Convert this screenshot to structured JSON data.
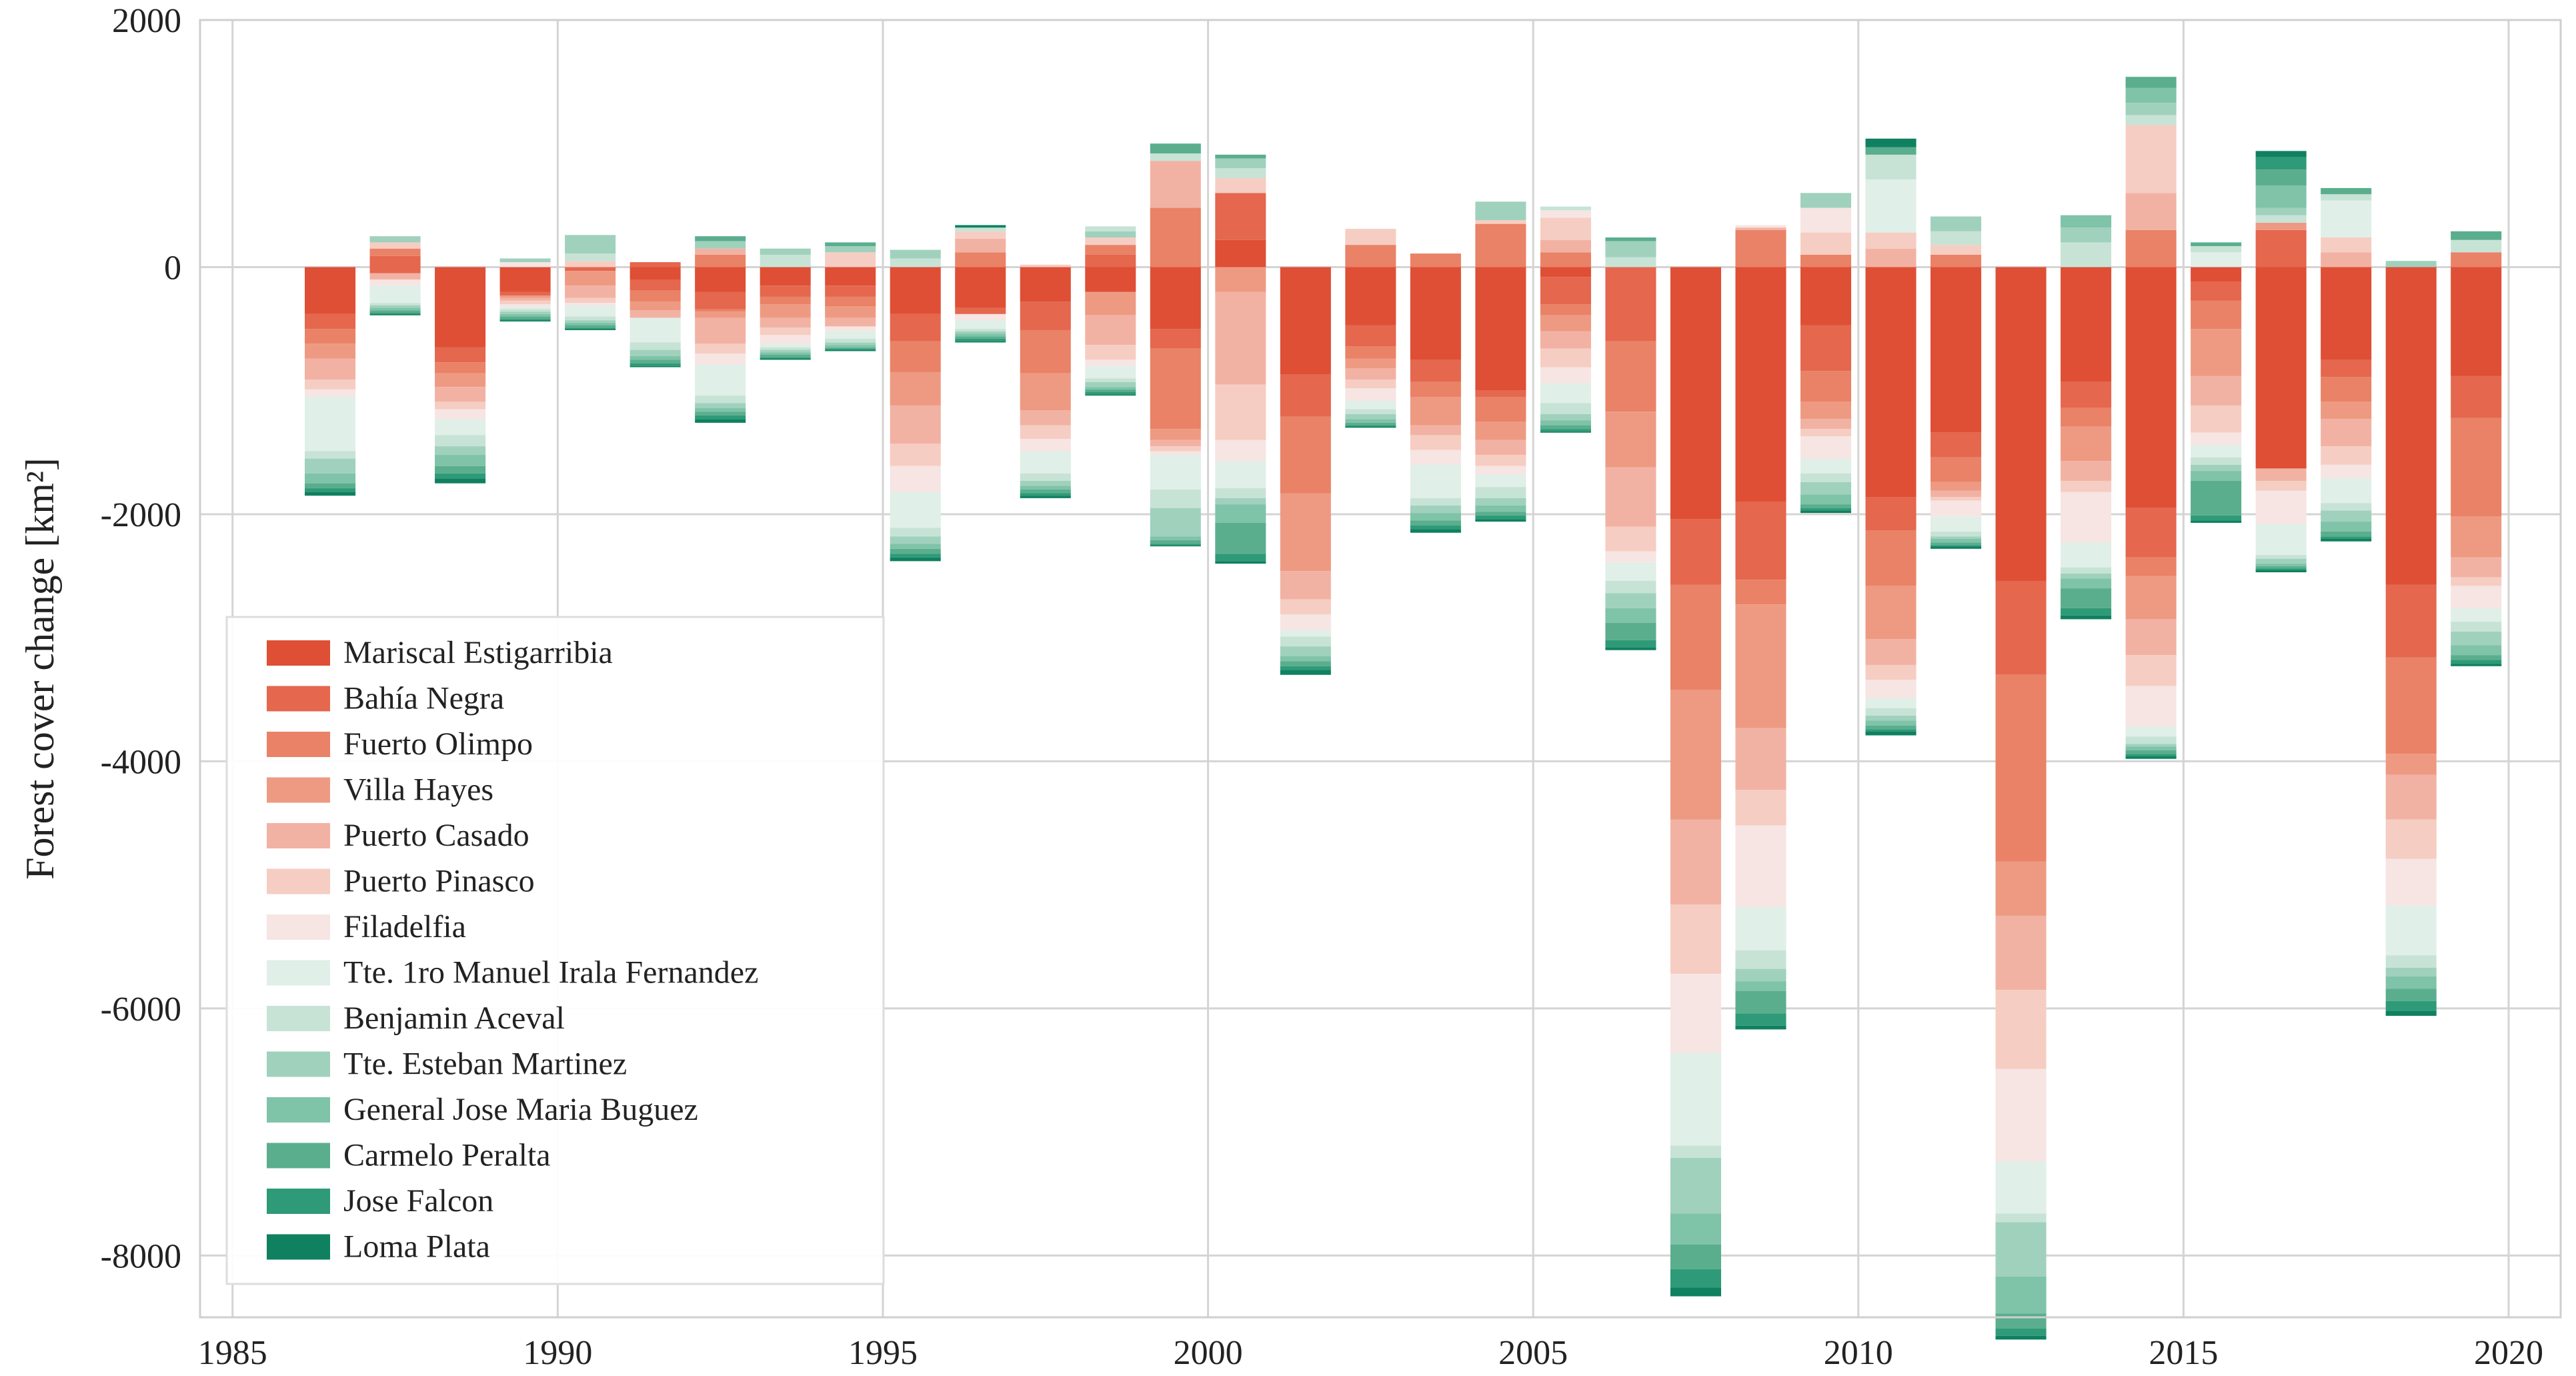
{
  "chart_data": {
    "type": "bar",
    "stacked": true,
    "title": "",
    "xlabel": "",
    "ylabel": "Forest cover change [km²]",
    "xlim": [
      1984.5,
      2020.8
    ],
    "ylim": [
      -8500,
      2000
    ],
    "x_ticks": [
      1985,
      1990,
      1995,
      2000,
      2005,
      2010,
      2015,
      2020
    ],
    "y_ticks": [
      2000,
      0,
      -2000,
      -4000,
      -6000,
      -8000
    ],
    "grid": true,
    "legend_position": "lower-left",
    "years": [
      1986,
      1987,
      1988,
      1989,
      1990,
      1991,
      1992,
      1993,
      1994,
      1995,
      1996,
      1997,
      1998,
      1999,
      2000,
      2001,
      2002,
      2003,
      2004,
      2005,
      2006,
      2007,
      2008,
      2009,
      2010,
      2011,
      2012,
      2013,
      2014,
      2015,
      2016,
      2017,
      2018,
      2019
    ],
    "series": [
      {
        "name": "Mariscal Estigarribia",
        "color": "#de4f35",
        "values": [
          -380,
          0,
          -650,
          -200,
          0,
          -100,
          -200,
          -150,
          -150,
          -380,
          -330,
          -280,
          -200,
          -500,
          0,
          -870,
          -470,
          -750,
          -1000,
          -80,
          0,
          -2040,
          -1900,
          -470,
          -1860,
          -1340,
          -2540,
          -930,
          -1950,
          -120,
          -1630,
          -750,
          -2570,
          -880
        ]
      },
      {
        "name": "Bahía Negra",
        "color": "#e4674e",
        "values": [
          -120,
          -50,
          -120,
          -30,
          -30,
          -90,
          -140,
          -90,
          -90,
          -220,
          -50,
          -230,
          30,
          -160,
          220,
          -340,
          -170,
          -180,
          -50,
          -220,
          -600,
          -530,
          -630,
          -370,
          -270,
          -200,
          -760,
          -210,
          -400,
          -150,
          350,
          -140,
          -590,
          -340
        ]
      },
      {
        "name": "Fuerto Olimpo",
        "color": "#e98266",
        "values": [
          -120,
          110,
          -90,
          0,
          20,
          -90,
          -20,
          -60,
          -80,
          -250,
          110,
          -350,
          130,
          -650,
          400,
          -620,
          -100,
          -120,
          -200,
          -90,
          -570,
          -850,
          -200,
          -250,
          -450,
          -200,
          -1510,
          -150,
          -150,
          -230,
          300,
          -200,
          -780,
          -800
        ]
      },
      {
        "name": "Villa Hayes",
        "color": "#ee9a83",
        "values": [
          -120,
          0,
          -110,
          -20,
          -120,
          -70,
          -50,
          -110,
          -90,
          -270,
          0,
          -300,
          -190,
          -90,
          -200,
          -630,
          -80,
          -230,
          -150,
          -130,
          -450,
          -1050,
          -1000,
          -140,
          -430,
          -70,
          -440,
          -280,
          -350,
          -380,
          0,
          -140,
          -170,
          -330
        ]
      },
      {
        "name": "Puerto Casado",
        "color": "#f2b2a3",
        "values": [
          -170,
          -50,
          -120,
          -20,
          -100,
          -60,
          -210,
          -80,
          -70,
          -310,
          80,
          -120,
          -240,
          -50,
          -750,
          -230,
          -90,
          -80,
          -120,
          -140,
          -480,
          -690,
          -500,
          -80,
          -210,
          -50,
          -600,
          -160,
          -290,
          -240,
          -100,
          -220,
          -360,
          -160
        ]
      },
      {
        "name": "Puerto Pinasco",
        "color": "#f6cdc2",
        "values": [
          -80,
          80,
          -60,
          -30,
          -40,
          0,
          -80,
          -60,
          30,
          -180,
          0,
          -110,
          -120,
          -40,
          -450,
          -120,
          -70,
          -120,
          -90,
          -150,
          -200,
          -560,
          -290,
          -60,
          -120,
          -30,
          -640,
          -90,
          -250,
          -220,
          -80,
          -150,
          -320,
          -70
        ]
      },
      {
        "name": "Filadelfia",
        "color": "#f6e5e3",
        "values": [
          -60,
          -50,
          -80,
          -20,
          -20,
          0,
          -90,
          -70,
          -40,
          -210,
          -50,
          -100,
          -50,
          -30,
          -170,
          -130,
          -100,
          -120,
          -70,
          -130,
          -90,
          -640,
          -660,
          -180,
          -150,
          -130,
          -750,
          -410,
          -330,
          -100,
          -270,
          -110,
          -380,
          -180
        ]
      },
      {
        "name": "Tte. 1ro Manuel Irala Fernandez",
        "color": "#e0efe8",
        "values": [
          -440,
          -140,
          -130,
          -20,
          -90,
          -200,
          -250,
          -30,
          -60,
          -290,
          -70,
          -180,
          -100,
          -280,
          -220,
          -50,
          -70,
          -270,
          -100,
          -160,
          -150,
          -750,
          -350,
          -120,
          -80,
          -120,
          -420,
          -200,
          -80,
          -100,
          -250,
          -200,
          -400,
          -110
        ]
      },
      {
        "name": "Benjamin Aceval",
        "color": "#c7e3d6",
        "values": [
          -60,
          -20,
          -90,
          -20,
          -30,
          -60,
          -60,
          -20,
          -30,
          -70,
          -20,
          -60,
          -30,
          -150,
          -80,
          -80,
          -40,
          -60,
          -90,
          -90,
          -100,
          -100,
          -150,
          -70,
          -60,
          -40,
          -70,
          -50,
          -60,
          -60,
          -30,
          -60,
          -100,
          -80
        ]
      },
      {
        "name": "Tte. Esteban Martinez",
        "color": "#a0d1bd",
        "values": [
          -120,
          -20,
          -70,
          -20,
          -20,
          -50,
          -40,
          -20,
          -20,
          -60,
          -20,
          -40,
          -40,
          -230,
          -50,
          -80,
          -40,
          -60,
          -60,
          -50,
          -120,
          -450,
          -100,
          -100,
          -40,
          -20,
          -440,
          -40,
          -20,
          -50,
          -40,
          -90,
          -70,
          -110
        ]
      },
      {
        "name": "General Jose Maria Buguez",
        "color": "#7fc3a9",
        "values": [
          -80,
          -20,
          -90,
          -20,
          -20,
          -30,
          -30,
          -20,
          -20,
          -40,
          -20,
          -30,
          -20,
          -30,
          -150,
          -40,
          -30,
          -60,
          -50,
          -40,
          -120,
          -250,
          -80,
          -80,
          -40,
          -30,
          -300,
          -80,
          -30,
          -80,
          -20,
          -80,
          -100,
          -80
        ]
      },
      {
        "name": "Carmelo Peralta",
        "color": "#5aae8e",
        "values": [
          -40,
          -20,
          -60,
          -20,
          -20,
          -30,
          -30,
          -20,
          -10,
          -40,
          -20,
          -30,
          -20,
          -30,
          -250,
          -40,
          -20,
          -40,
          -30,
          -30,
          -140,
          -200,
          -180,
          -30,
          -30,
          -20,
          -120,
          -160,
          -30,
          -280,
          -20,
          -40,
          -100,
          -40
        ]
      },
      {
        "name": "Jose Falcon",
        "color": "#2f9a77",
        "values": [
          -30,
          -10,
          -40,
          -10,
          -10,
          -20,
          -30,
          -10,
          -10,
          -30,
          -20,
          -20,
          -20,
          -10,
          -60,
          -30,
          -10,
          -30,
          -30,
          -20,
          -60,
          -150,
          -100,
          -20,
          -20,
          -10,
          -60,
          -60,
          -20,
          -40,
          -10,
          -20,
          -80,
          -30
        ]
      },
      {
        "name": "Loma Plata",
        "color": "#0f8060",
        "values": [
          -30,
          -10,
          -40,
          -10,
          -10,
          -10,
          -30,
          -10,
          -10,
          -30,
          -10,
          -20,
          -10,
          -10,
          -20,
          -40,
          -10,
          -30,
          -20,
          -10,
          -20,
          -70,
          -30,
          -20,
          -30,
          -20,
          -30,
          -30,
          -20,
          -20,
          -20,
          -20,
          -40,
          -20
        ]
      }
    ],
    "positive_stacks": [
      {
        "year": 1986,
        "segments": []
      },
      {
        "year": 1987,
        "segments": [
          [
            "Bahía Negra",
            90
          ],
          [
            "Fuerto Olimpo",
            60
          ],
          [
            "Puerto Pinasco",
            50
          ],
          [
            "Tte. Esteban Martinez",
            50
          ]
        ]
      },
      {
        "year": 1988,
        "segments": []
      },
      {
        "year": 1989,
        "segments": [
          [
            "Filadelfia",
            40
          ],
          [
            "Tte. Esteban Martinez",
            30
          ]
        ]
      },
      {
        "year": 1990,
        "segments": [
          [
            "Puerto Pinasco",
            50
          ],
          [
            "Benjamin Aceval",
            60
          ],
          [
            "Tte. Esteban Martinez",
            150
          ]
        ]
      },
      {
        "year": 1991,
        "segments": [
          [
            "Bahía Negra",
            40
          ]
        ]
      },
      {
        "year": 1992,
        "segments": [
          [
            "Fuerto Olimpo",
            100
          ],
          [
            "Puerto Casado",
            50
          ],
          [
            "Tte. Esteban Martinez",
            60
          ],
          [
            "Carmelo Peralta",
            40
          ]
        ]
      },
      {
        "year": 1993,
        "segments": [
          [
            "Benjamin Aceval",
            100
          ],
          [
            "Tte. Esteban Martinez",
            50
          ]
        ]
      },
      {
        "year": 1994,
        "segments": [
          [
            "Puerto Pinasco",
            120
          ],
          [
            "Tte. Esteban Martinez",
            50
          ],
          [
            "Carmelo Peralta",
            30
          ]
        ]
      },
      {
        "year": 1995,
        "segments": [
          [
            "Benjamin Aceval",
            70
          ],
          [
            "Tte. Esteban Martinez",
            70
          ]
        ]
      },
      {
        "year": 1996,
        "segments": [
          [
            "Fuerto Olimpo",
            120
          ],
          [
            "Puerto Casado",
            110
          ],
          [
            "Puerto Pinasco",
            60
          ],
          [
            "Benjamin Aceval",
            30
          ],
          [
            "Loma Plata",
            20
          ]
        ]
      },
      {
        "year": 1997,
        "segments": [
          [
            "Puerto Pinasco",
            20
          ]
        ]
      },
      {
        "year": 1998,
        "segments": [
          [
            "Bahía Negra",
            100
          ],
          [
            "Fuerto Olimpo",
            80
          ],
          [
            "Puerto Pinasco",
            60
          ],
          [
            "Tte. Esteban Martinez",
            50
          ],
          [
            "Benjamin Aceval",
            40
          ]
        ]
      },
      {
        "year": 1999,
        "segments": [
          [
            "Fuerto Olimpo",
            480
          ],
          [
            "Puerto Casado",
            380
          ],
          [
            "Benjamin Aceval",
            60
          ],
          [
            "Carmelo Peralta",
            80
          ]
        ]
      },
      {
        "year": 2000,
        "segments": [
          [
            "Mariscal Estigarribia",
            220
          ],
          [
            "Bahía Negra",
            380
          ],
          [
            "Puerto Pinasco",
            120
          ],
          [
            "Benjamin Aceval",
            80
          ],
          [
            "Tte. Esteban Martinez",
            80
          ],
          [
            "Carmelo Peralta",
            30
          ]
        ]
      },
      {
        "year": 2001,
        "segments": []
      },
      {
        "year": 2002,
        "segments": [
          [
            "Fuerto Olimpo",
            180
          ],
          [
            "Puerto Pinasco",
            130
          ]
        ]
      },
      {
        "year": 2003,
        "segments": [
          [
            "Fuerto Olimpo",
            110
          ]
        ]
      },
      {
        "year": 2004,
        "segments": [
          [
            "Fuerto Olimpo",
            350
          ],
          [
            "Puerto Pinasco",
            30
          ],
          [
            "Tte. Esteban Martinez",
            150
          ]
        ]
      },
      {
        "year": 2005,
        "segments": [
          [
            "Fuerto Olimpo",
            120
          ],
          [
            "Puerto Casado",
            100
          ],
          [
            "Puerto Pinasco",
            180
          ],
          [
            "Filadelfia",
            60
          ],
          [
            "Benjamin Aceval",
            30
          ]
        ]
      },
      {
        "year": 2006,
        "segments": [
          [
            "Benjamin Aceval",
            80
          ],
          [
            "Tte. Esteban Martinez",
            130
          ],
          [
            "Carmelo Peralta",
            30
          ]
        ]
      },
      {
        "year": 2007,
        "segments": []
      },
      {
        "year": 2008,
        "segments": [
          [
            "Fuerto Olimpo",
            300
          ],
          [
            "Puerto Casado",
            20
          ],
          [
            "Filadelfia",
            20
          ]
        ]
      },
      {
        "year": 2009,
        "segments": [
          [
            "Fuerto Olimpo",
            100
          ],
          [
            "Puerto Pinasco",
            180
          ],
          [
            "Filadelfia",
            200
          ],
          [
            "Tte. Esteban Martinez",
            120
          ]
        ]
      },
      {
        "year": 2010,
        "segments": [
          [
            "Puerto Casado",
            150
          ],
          [
            "Puerto Pinasco",
            130
          ],
          [
            "Tte. 1ro Manuel Irala Fernandez",
            430
          ],
          [
            "Benjamin Aceval",
            200
          ],
          [
            "Carmelo Peralta",
            60
          ],
          [
            "Loma Plata",
            70
          ]
        ]
      },
      {
        "year": 2011,
        "segments": [
          [
            "Fuerto Olimpo",
            100
          ],
          [
            "Puerto Pinasco",
            80
          ],
          [
            "Benjamin Aceval",
            110
          ],
          [
            "Tte. Esteban Martinez",
            120
          ]
        ]
      },
      {
        "year": 2012,
        "segments": []
      },
      {
        "year": 2013,
        "segments": [
          [
            "Benjamin Aceval",
            200
          ],
          [
            "Tte. Esteban Martinez",
            120
          ],
          [
            "General Jose Maria Buguez",
            100
          ]
        ]
      },
      {
        "year": 2014,
        "segments": [
          [
            "Fuerto Olimpo",
            300
          ],
          [
            "Puerto Casado",
            300
          ],
          [
            "Puerto Pinasco",
            550
          ],
          [
            "Benjamin Aceval",
            80
          ],
          [
            "Tte. Esteban Martinez",
            100
          ],
          [
            "General Jose Maria Buguez",
            120
          ],
          [
            "Carmelo Peralta",
            90
          ]
        ]
      },
      {
        "year": 2015,
        "segments": [
          [
            "Tte. 1ro Manuel Irala Fernandez",
            120
          ],
          [
            "Benjamin Aceval",
            50
          ],
          [
            "Carmelo Peralta",
            30
          ]
        ]
      },
      {
        "year": 2016,
        "segments": [
          [
            "Bahía Negra",
            300
          ],
          [
            "Villa Hayes",
            60
          ],
          [
            "Benjamin Aceval",
            60
          ],
          [
            "Tte. Esteban Martinez",
            60
          ],
          [
            "General Jose Maria Buguez",
            180
          ],
          [
            "Carmelo Peralta",
            130
          ],
          [
            "Jose Falcon",
            100
          ],
          [
            "Loma Plata",
            50
          ]
        ]
      },
      {
        "year": 2017,
        "segments": [
          [
            "Puerto Casado",
            120
          ],
          [
            "Puerto Pinasco",
            120
          ],
          [
            "Tte. 1ro Manuel Irala Fernandez",
            300
          ],
          [
            "Benjamin Aceval",
            50
          ],
          [
            "Carmelo Peralta",
            50
          ]
        ]
      },
      {
        "year": 2018,
        "segments": [
          [
            "Tte. Esteban Martinez",
            50
          ]
        ]
      },
      {
        "year": 2019,
        "segments": [
          [
            "Fuerto Olimpo",
            120
          ],
          [
            "Benjamin Aceval",
            100
          ],
          [
            "Carmelo Peralta",
            70
          ]
        ]
      }
    ]
  }
}
